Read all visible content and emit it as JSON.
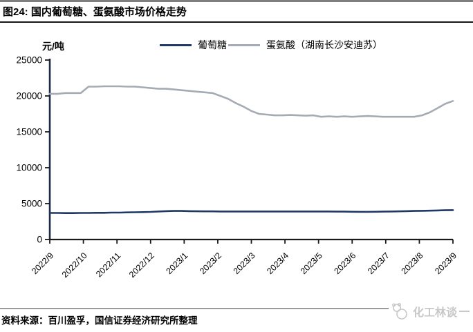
{
  "header": {
    "title": "图24: 国内葡萄糖、蛋氨酸市场价格走势"
  },
  "chart_data": {
    "type": "line",
    "title": "国内葡萄糖、蛋氨酸市场价格走势",
    "ylabel": "元/吨",
    "xlabel": "",
    "ylim": [
      0,
      25000
    ],
    "y_ticks": [
      0,
      5000,
      10000,
      15000,
      20000,
      25000
    ],
    "grid": false,
    "legend_position": "top",
    "x_tick_labels": [
      "2022/9",
      "2022/10",
      "2022/11",
      "2022/12",
      "2023/1",
      "2023/2",
      "2023/3",
      "2023/4",
      "2023/5",
      "2023/6",
      "2023/7",
      "2023/8",
      "2023/9"
    ],
    "series": [
      {
        "key": "glucose",
        "name": "葡萄糖",
        "color": "#1f3864",
        "values": [
          3700,
          3700,
          3680,
          3680,
          3700,
          3700,
          3720,
          3720,
          3750,
          3750,
          3780,
          3800,
          3820,
          3850,
          3900,
          3950,
          3980,
          3980,
          3950,
          3930,
          3920,
          3920,
          3900,
          3900,
          3900,
          3900,
          3900,
          3900,
          3900,
          3900,
          3900,
          3900,
          3900,
          3900,
          3900,
          3900,
          3900,
          3880,
          3880,
          3870,
          3860,
          3860,
          3870,
          3880,
          3900,
          3920,
          3950,
          3980,
          4000,
          4020,
          4050,
          4080,
          4100
        ]
      },
      {
        "key": "methionine",
        "name": "蛋氨酸（湖南长沙安迪苏）",
        "color": "#a5abb4",
        "values": [
          20300,
          20300,
          20400,
          20400,
          20400,
          21300,
          21300,
          21350,
          21350,
          21350,
          21300,
          21300,
          21200,
          21100,
          21000,
          21000,
          20900,
          20800,
          20700,
          20600,
          20500,
          20400,
          20000,
          19600,
          19000,
          18500,
          17900,
          17500,
          17400,
          17300,
          17300,
          17350,
          17300,
          17250,
          17300,
          17100,
          17150,
          17100,
          17150,
          17100,
          17150,
          17200,
          17150,
          17100,
          17100,
          17100,
          17100,
          17100,
          17300,
          17700,
          18300,
          18900,
          19300
        ]
      }
    ]
  },
  "footer": {
    "source": "资料来源：百川盈孚，国信证券经济研究所整理",
    "watermark_text": "化工林谈"
  },
  "colors": {
    "glucose_line": "#1f3864",
    "methionine_line": "#a5abb4",
    "axis": "#1a1a1a",
    "y_axis": "#1c2b4a",
    "top_bar": "#7f7f7f",
    "title_divider": "#141414",
    "footer_line": "#9a9a9a",
    "watermark": "#c8c8c8",
    "text": "#000000"
  }
}
